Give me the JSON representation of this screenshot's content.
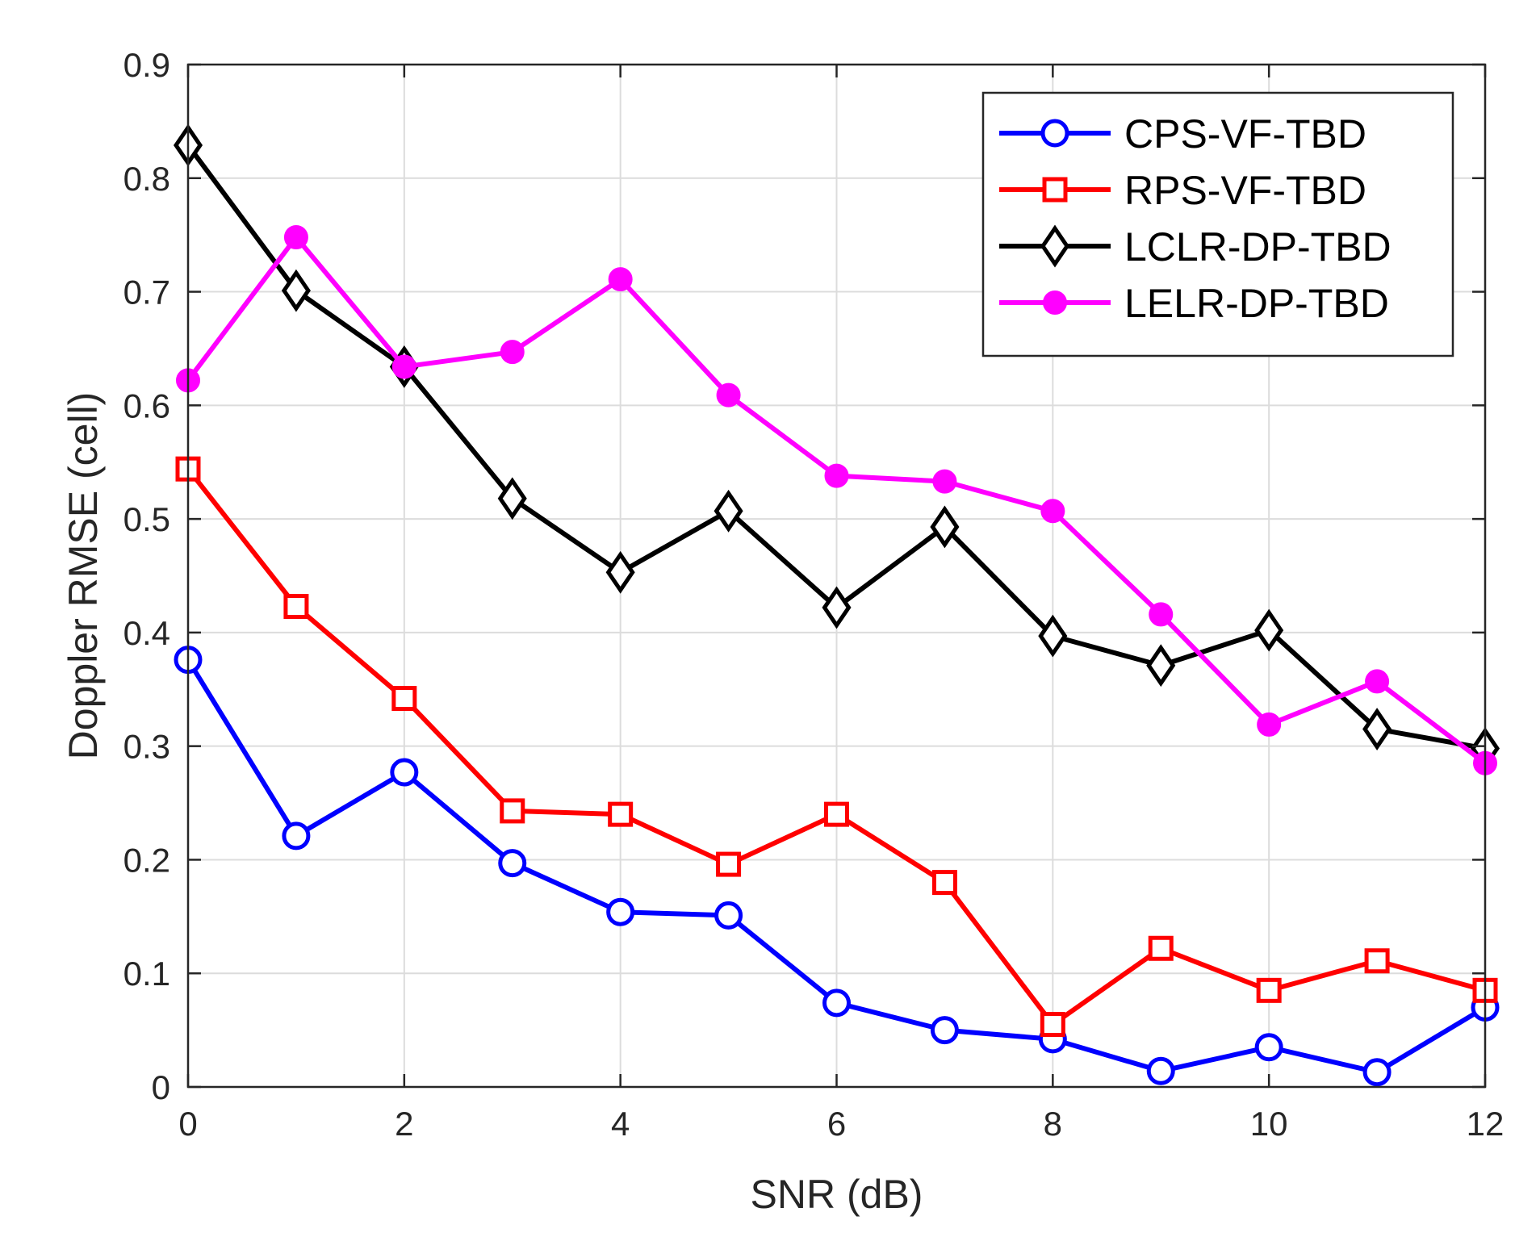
{
  "chart_data": {
    "type": "line",
    "xlabel": "SNR (dB)",
    "ylabel": "Doppler RMSE (cell)",
    "xlim": [
      0,
      12
    ],
    "ylim": [
      0,
      0.9
    ],
    "xticks": [
      0,
      2,
      4,
      6,
      8,
      10,
      12
    ],
    "yticks": [
      0,
      0.1,
      0.2,
      0.3,
      0.4,
      0.5,
      0.6,
      0.7,
      0.8,
      0.9
    ],
    "grid": true,
    "legend_position": "top-right",
    "x": [
      0,
      1,
      2,
      3,
      4,
      5,
      6,
      7,
      8,
      9,
      10,
      11,
      12
    ],
    "series": [
      {
        "name": "CPS-VF-TBD",
        "color": "#0000ff",
        "marker": "circle-open",
        "values": [
          0.376,
          0.221,
          0.277,
          0.197,
          0.154,
          0.151,
          0.074,
          0.05,
          0.042,
          0.014,
          0.035,
          0.013,
          0.07
        ]
      },
      {
        "name": "RPS-VF-TBD",
        "color": "#ff0000",
        "marker": "square-open",
        "values": [
          0.544,
          0.423,
          0.342,
          0.243,
          0.24,
          0.196,
          0.24,
          0.18,
          0.055,
          0.122,
          0.085,
          0.111,
          0.085
        ]
      },
      {
        "name": "LCLR-DP-TBD",
        "color": "#000000",
        "marker": "diamond-open",
        "values": [
          0.829,
          0.701,
          0.634,
          0.518,
          0.453,
          0.507,
          0.422,
          0.493,
          0.397,
          0.371,
          0.402,
          0.315,
          0.298
        ]
      },
      {
        "name": "LELR-DP-TBD",
        "color": "#ff00ff",
        "marker": "circle-filled",
        "values": [
          0.622,
          0.748,
          0.634,
          0.647,
          0.711,
          0.609,
          0.538,
          0.533,
          0.507,
          0.416,
          0.319,
          0.357,
          0.285
        ]
      }
    ]
  }
}
